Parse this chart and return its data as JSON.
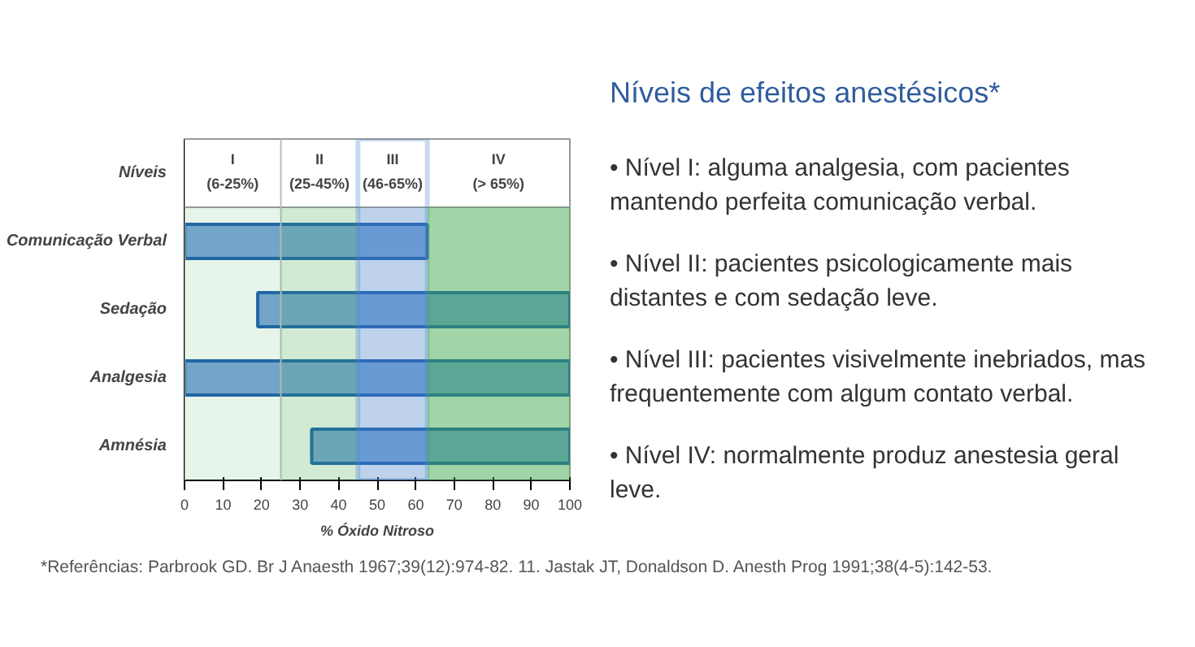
{
  "chart_data": {
    "type": "bar",
    "orientation": "horizontal",
    "title": "Níveis de efeitos anestésicos*",
    "xlabel": "% Óxido Nitroso",
    "categories": [
      "Comunicação Verbal",
      "Sedação",
      "Analgesia",
      "Amnésia"
    ],
    "base": [
      0,
      19,
      0,
      33
    ],
    "values": [
      63,
      81,
      100,
      67
    ],
    "color": "#7aa6da",
    "xlim": [
      0,
      100
    ],
    "xticks": [
      0,
      10,
      20,
      30,
      40,
      50,
      60,
      70,
      80,
      90,
      100
    ],
    "grid": false,
    "bands": [
      {
        "axis": "x",
        "from": 0,
        "to": 25,
        "label": "I (6-25%)"
      },
      {
        "axis": "x",
        "from": 25,
        "to": 45,
        "label": "II (25-45%)"
      },
      {
        "axis": "x",
        "from": 45,
        "to": 63,
        "label": "III (46-65%)",
        "color": "#4a86c8"
      },
      {
        "axis": "x",
        "from": 63,
        "to": 100,
        "label": "IV (> 65%)"
      }
    ],
    "annotations": [
      "Níveis",
      "• Nível I: alguma analgesia, com pacientes mantendo perfeita comunicação verbal.",
      "• Nível II: pacientes psicologicamente mais distantes e com sedação leve.",
      "• Nível III: pacientes visivelmente inebriados, mas frequentemente com algum contato verbal.",
      "• Nível IV: normalmente produz anestesia geral leve.",
      "*Referências: Parbrook GD. Br J Anaesth 1967;39(12):974-82. 11. Jastak JT, Donaldson D. Anesth Prog 1991;38(4-5):142-53."
    ]
  }
}
